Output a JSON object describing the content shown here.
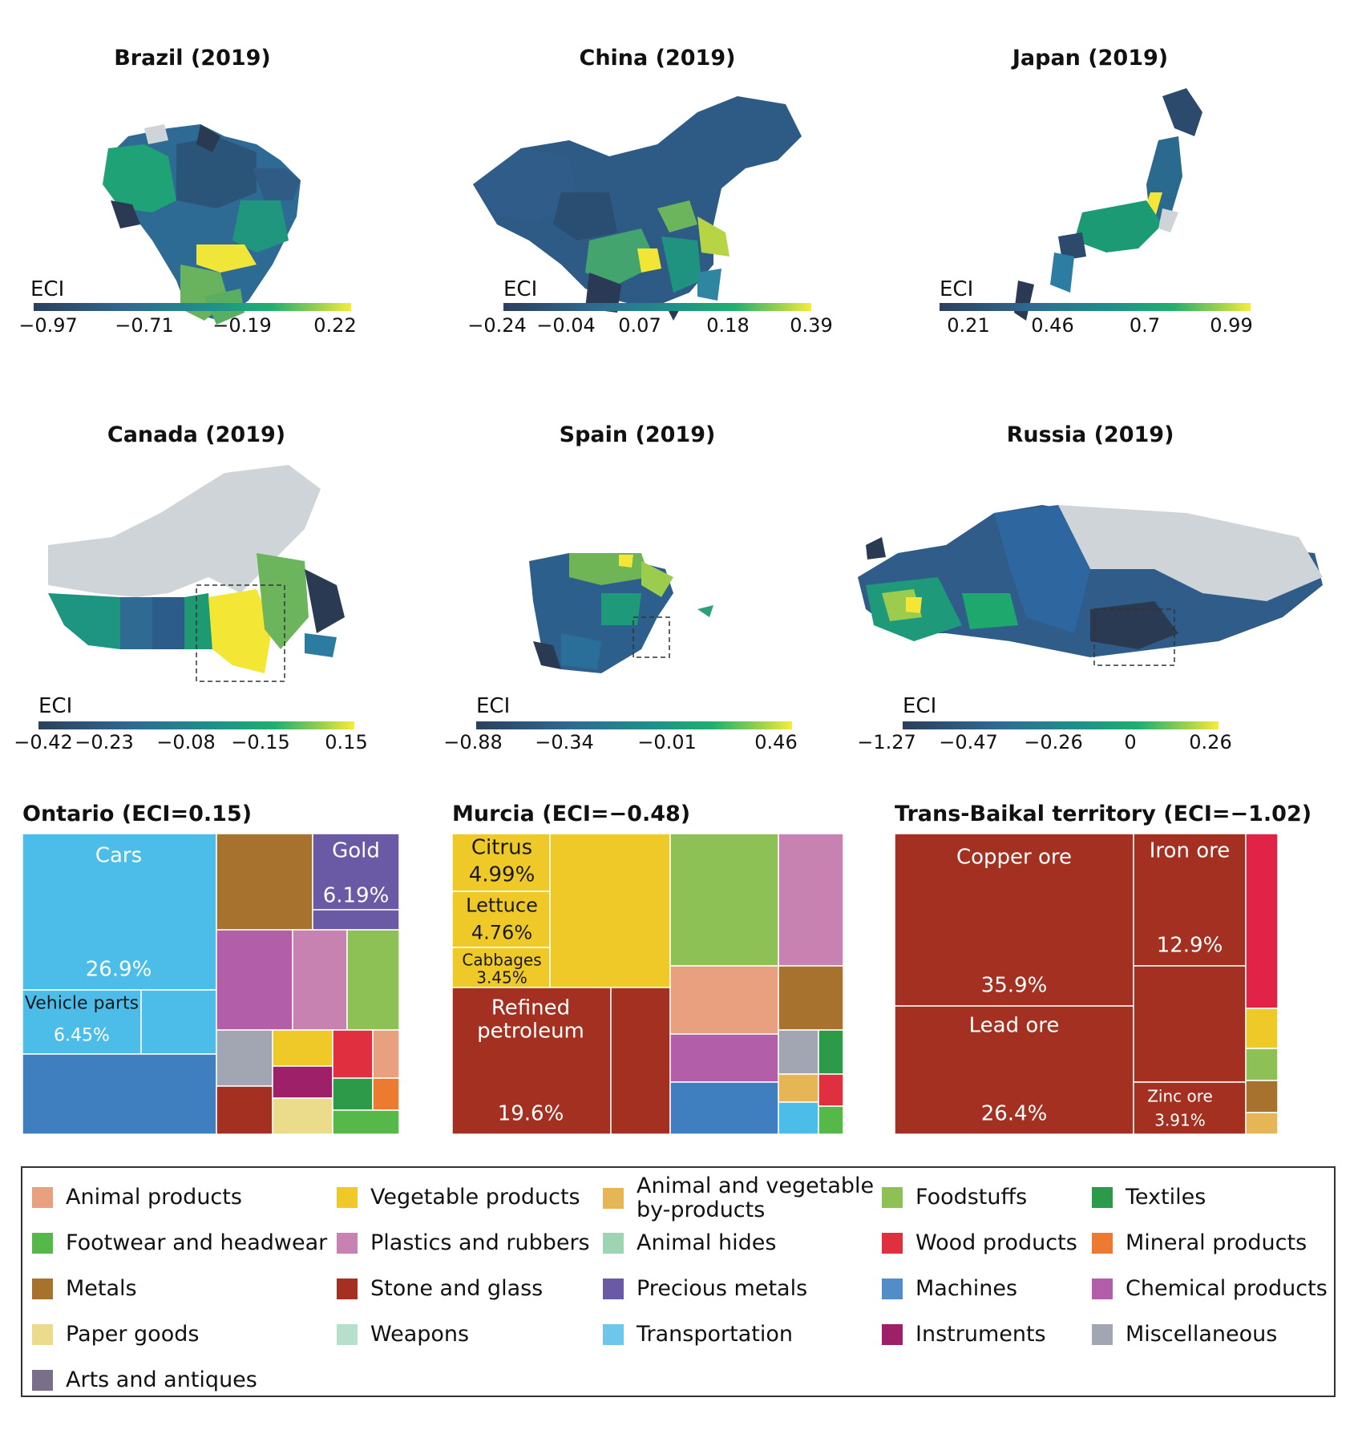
{
  "maps": [
    {
      "id": "brazil",
      "title": "Brazil (2019)",
      "eci_label": "ECI",
      "ticks": [
        "−0.97",
        "−0.71",
        "−0.19",
        "0.22"
      ]
    },
    {
      "id": "china",
      "title": "China (2019)",
      "eci_label": "ECI",
      "ticks": [
        "−0.24",
        "−0.04",
        "0.07",
        "0.18",
        "0.39"
      ]
    },
    {
      "id": "japan",
      "title": "Japan (2019)",
      "eci_label": "ECI",
      "ticks": [
        "0.21",
        "0.46",
        "0.7",
        "0.99"
      ]
    },
    {
      "id": "canada",
      "title": "Canada (2019)",
      "eci_label": "ECI",
      "ticks": [
        "−0.42",
        "−0.23",
        "−0.08",
        "−0.15",
        "0.15"
      ]
    },
    {
      "id": "spain",
      "title": "Spain (2019)",
      "eci_label": "ECI",
      "ticks": [
        "−0.88",
        "−0.34",
        "−0.01",
        "0.46"
      ]
    },
    {
      "id": "russia",
      "title": "Russia (2019)",
      "eci_label": "ECI",
      "ticks": [
        "−1.27",
        "−0.47",
        "−0.26",
        "0",
        "0.26"
      ]
    }
  ],
  "treemaps": [
    {
      "id": "ontario",
      "title": "Ontario (ECI=0.15)",
      "labels": [
        {
          "name": "Cars",
          "text": "Cars"
        },
        {
          "name": "Cars share",
          "text": "26.9%"
        },
        {
          "name": "Vehicle parts",
          "text": "Vehicle parts"
        },
        {
          "name": "Vehicle parts share",
          "text": "6.45%"
        },
        {
          "name": "Gold",
          "text": "Gold"
        },
        {
          "name": "Gold share",
          "text": "6.19%"
        }
      ]
    },
    {
      "id": "murcia",
      "title": "Murcia (ECI=−0.48)",
      "labels": [
        {
          "name": "Citrus",
          "text": "Citrus"
        },
        {
          "name": "Citrus share",
          "text": "4.99%"
        },
        {
          "name": "Lettuce",
          "text": "Lettuce"
        },
        {
          "name": "Lettuce share",
          "text": "4.76%"
        },
        {
          "name": "Cabbages",
          "text": "Cabbages"
        },
        {
          "name": "Cabbages share",
          "text": "3.45%"
        },
        {
          "name": "Refined petroleum",
          "text": "Refined"
        },
        {
          "name": "Refined petroleum line 2",
          "text": "petroleum"
        },
        {
          "name": "Refined petroleum share",
          "text": "19.6%"
        }
      ]
    },
    {
      "id": "transbaikal",
      "title": "Trans-Baikal territory (ECI=−1.02)",
      "labels": [
        {
          "name": "Copper ore",
          "text": "Copper ore"
        },
        {
          "name": "Copper ore share",
          "text": "35.9%"
        },
        {
          "name": "Iron ore",
          "text": "Iron ore"
        },
        {
          "name": "Iron ore share",
          "text": "12.9%"
        },
        {
          "name": "Lead ore",
          "text": "Lead ore"
        },
        {
          "name": "Lead ore share",
          "text": "26.4%"
        },
        {
          "name": "Zinc ore",
          "text": "Zinc ore"
        },
        {
          "name": "Zinc ore share",
          "text": "3.91%"
        }
      ]
    }
  ],
  "legend": [
    {
      "label": "Animal products",
      "color": "#e8a07f"
    },
    {
      "label": "Vegetable products",
      "color": "#efc928"
    },
    {
      "label": "Animal and vegetable by-products",
      "color": "#e6b556"
    },
    {
      "label": "Foodstuffs",
      "color": "#8dc155"
    },
    {
      "label": "Textiles",
      "color": "#2d9a4a"
    },
    {
      "label": "Footwear and headwear",
      "color": "#55b848"
    },
    {
      "label": "Plastics and rubbers",
      "color": "#c882b2"
    },
    {
      "label": "Animal hides",
      "color": "#9dd4b1"
    },
    {
      "label": "Wood products",
      "color": "#e03040"
    },
    {
      "label": "Mineral products",
      "color": "#ec7a30"
    },
    {
      "label": "Metals",
      "color": "#a7722e"
    },
    {
      "label": "Stone and glass",
      "color": "#a33020"
    },
    {
      "label": "Precious metals",
      "color": "#6a5aa6"
    },
    {
      "label": "Machines",
      "color": "#528cc9"
    },
    {
      "label": "Chemical products",
      "color": "#b25ea8"
    },
    {
      "label": "Paper goods",
      "color": "#eadc8a"
    },
    {
      "label": "Weapons",
      "color": "#b6e0cc"
    },
    {
      "label": "Transportation",
      "color": "#6ec6ea"
    },
    {
      "label": "Instruments",
      "color": "#9e2068"
    },
    {
      "label": "Miscellaneous",
      "color": "#a2a6b2"
    },
    {
      "label": "Arts and antiques",
      "color": "#7a6f8a"
    }
  ]
}
